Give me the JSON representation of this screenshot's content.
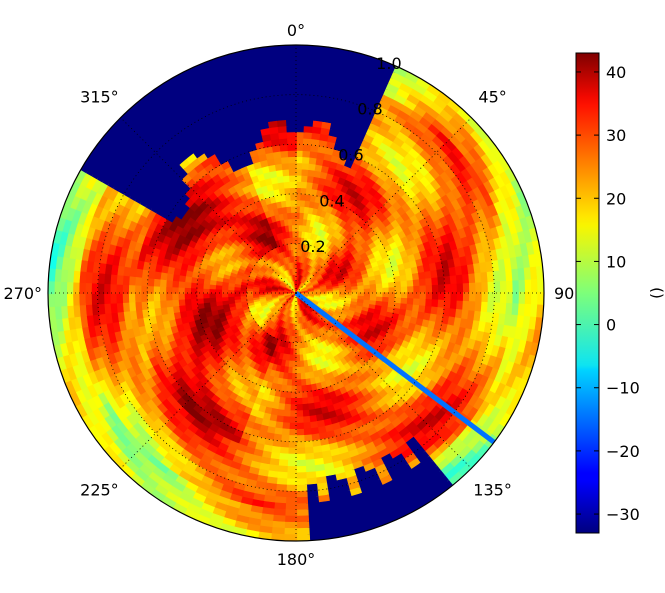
{
  "chart_data": {
    "type": "heatmap",
    "projection": "polar",
    "theta_zero_location": "N",
    "theta_direction": "clockwise",
    "theta_ticks": [
      {
        "deg": 0,
        "label": "0°"
      },
      {
        "deg": 45,
        "label": "45°"
      },
      {
        "deg": 90,
        "label": "90"
      },
      {
        "deg": 135,
        "label": "135°"
      },
      {
        "deg": 180,
        "label": "180°"
      },
      {
        "deg": 225,
        "label": "225°"
      },
      {
        "deg": 270,
        "label": "270°"
      },
      {
        "deg": 315,
        "label": "315°"
      }
    ],
    "r_ticks": [
      {
        "value": 0.2,
        "label": "0.2"
      },
      {
        "value": 0.4,
        "label": "0.4"
      },
      {
        "value": 0.6,
        "label": "0.6"
      },
      {
        "value": 0.8,
        "label": "0.8"
      },
      {
        "value": 1.0,
        "label": "1.0"
      }
    ],
    "rlim": [
      0,
      1.0
    ],
    "grid": true,
    "colormap": "jet",
    "clim": [
      -33,
      43
    ],
    "colorbar": {
      "label": "()",
      "ticks": [
        -30,
        -20,
        -10,
        0,
        10,
        20,
        30,
        40
      ],
      "tick_labels": [
        "−30",
        "−20",
        "−10",
        "0",
        "10",
        "20",
        "30",
        "40"
      ]
    },
    "features": {
      "background_level": 25,
      "masked_region_top_left": {
        "theta_range_deg": [
          300,
          25
        ],
        "r_min": 0.62,
        "value": -33
      },
      "masked_region_bottom_right": {
        "theta_range_deg": [
          140,
          178
        ],
        "r_min": 0.8,
        "value": -33
      },
      "streak": {
        "theta_deg": 127,
        "r_range": [
          0,
          1.0
        ],
        "value": -15
      }
    }
  }
}
